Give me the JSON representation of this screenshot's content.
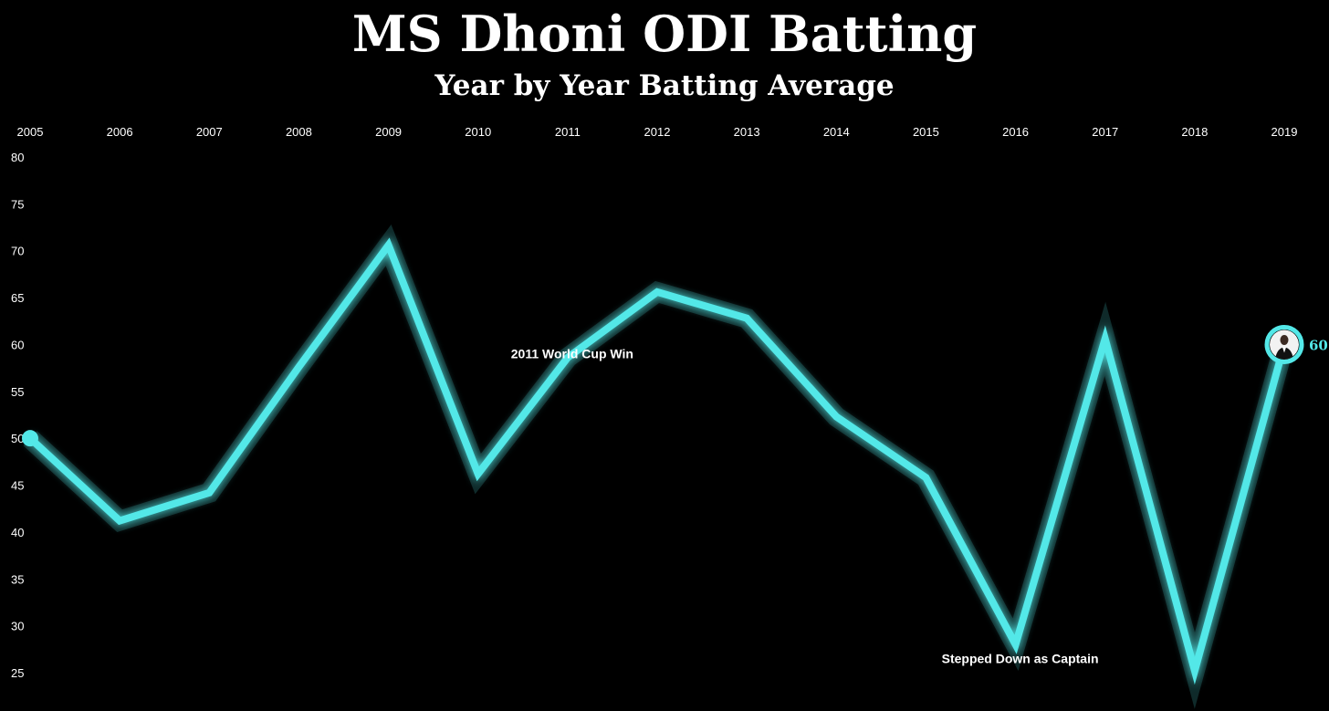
{
  "title": "MS Dhoni ODI Batting",
  "subtitle": "Year by Year Batting Average",
  "chart_data": {
    "type": "line",
    "title": "MS Dhoni ODI Batting",
    "subtitle": "Year by Year Batting Average",
    "x": [
      "2005",
      "2006",
      "2007",
      "2008",
      "2009",
      "2010",
      "2011",
      "2012",
      "2013",
      "2014",
      "2015",
      "2016",
      "2017",
      "2018",
      "2019"
    ],
    "series": [
      {
        "values": [
          50.0,
          41.2,
          44.2,
          57.6,
          70.6,
          46.2,
          58.6,
          65.6,
          62.8,
          52.3,
          45.8,
          28.0,
          60.6,
          25.2,
          60.0
        ]
      }
    ],
    "ylim": [
      25,
      80
    ],
    "yticks": [
      80,
      75,
      70,
      65,
      60,
      55,
      50,
      45,
      40,
      35,
      30,
      25
    ],
    "xaxis_position": "top",
    "grid": false,
    "line_color": "#53e8e8",
    "background_color": "#000000",
    "annotations": [
      {
        "text": "2011 World Cup Win",
        "x": "2011",
        "y": 59
      },
      {
        "text": "Stepped Down as Captain",
        "x": "2016",
        "y": 26.5
      }
    ],
    "end_label": "60",
    "end_marker_icon": "player-photo-icon"
  }
}
